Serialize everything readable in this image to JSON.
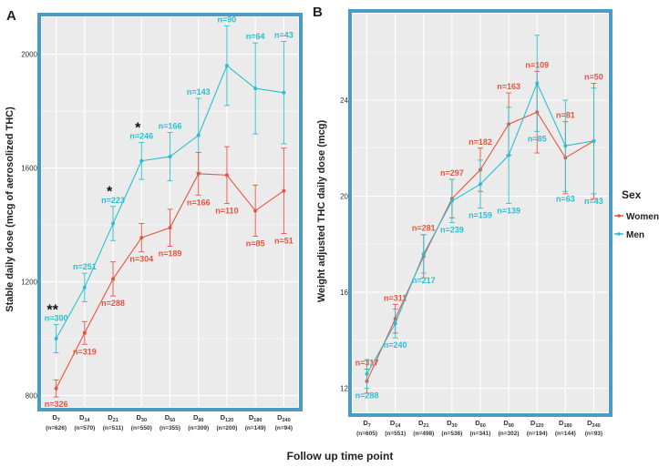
{
  "figure": {
    "shared_xlabel": "Follow up time point"
  },
  "colors": {
    "women": "#e8543f",
    "men": "#29bfd2",
    "frame": "#4a9cc4",
    "panel_bg": "#ebebeb",
    "grid": "#ffffff",
    "text": "#222222"
  },
  "chart_data": [
    {
      "panel": "A",
      "type": "line",
      "ylabel": "Stable daily dose (mcg of aerosolized THC)",
      "xlabel": "Follow up time point",
      "ylim": [
        760,
        2130
      ],
      "yticks": [
        800,
        1200,
        1600,
        2000
      ],
      "categories": [
        {
          "main": "D",
          "sub": "7",
          "n": "(n=626)"
        },
        {
          "main": "D",
          "sub": "14",
          "n": "(n=570)"
        },
        {
          "main": "D",
          "sub": "21",
          "n": "(n=511)"
        },
        {
          "main": "D",
          "sub": "30",
          "n": "(n=550)"
        },
        {
          "main": "D",
          "sub": "60",
          "n": "(n=355)"
        },
        {
          "main": "D",
          "sub": "90",
          "n": "(n=309)"
        },
        {
          "main": "D",
          "sub": "120",
          "n": "(n=200)"
        },
        {
          "main": "D",
          "sub": "180",
          "n": "(n=149)"
        },
        {
          "main": "D",
          "sub": "240",
          "n": "(n=94)"
        }
      ],
      "series": [
        {
          "name": "Men",
          "color": "#29bfd2",
          "values": [
            1000,
            1180,
            1405,
            1625,
            1640,
            1715,
            1960,
            1880,
            1865
          ],
          "err": [
            50,
            50,
            60,
            65,
            85,
            130,
            140,
            160,
            180
          ],
          "labels": [
            "n=300",
            "n=251",
            "n=223",
            "n=246",
            "n=166",
            "n=143",
            "n=90",
            "n=64",
            "n=43"
          ],
          "label_pos": [
            "above",
            "above",
            "above",
            "above",
            "above",
            "above",
            "above",
            "above",
            "above"
          ]
        },
        {
          "name": "Women",
          "color": "#e8543f",
          "values": [
            825,
            1020,
            1210,
            1355,
            1390,
            1580,
            1575,
            1450,
            1520
          ],
          "err": [
            30,
            40,
            60,
            50,
            65,
            75,
            100,
            90,
            150
          ],
          "labels": [
            "n=326",
            "n=319",
            "n=288",
            "n=304",
            "n=189",
            "n=166",
            "n=110",
            "n=85",
            "n=51"
          ],
          "label_pos": [
            "below",
            "below",
            "below",
            "below",
            "below",
            "below",
            "below",
            "below",
            "below"
          ]
        }
      ],
      "annotations": [
        {
          "text": "**",
          "category_index": 0,
          "value": 1060
        },
        {
          "text": "*",
          "category_index": 2,
          "value": 1475
        },
        {
          "text": "*",
          "category_index": 3,
          "value": 1700
        }
      ]
    },
    {
      "panel": "B",
      "type": "line",
      "ylabel": "Weight adjusted THC daily dose (mcg)",
      "xlabel": "Follow up time point",
      "ylim": [
        11,
        27.6
      ],
      "yticks": [
        12,
        16,
        20,
        24
      ],
      "categories": [
        {
          "main": "D",
          "sub": "7",
          "n": "(n=605)"
        },
        {
          "main": "D",
          "sub": "14",
          "n": "(n=551)"
        },
        {
          "main": "D",
          "sub": "21",
          "n": "(n=498)"
        },
        {
          "main": "D",
          "sub": "30",
          "n": "(n=536)"
        },
        {
          "main": "D",
          "sub": "60",
          "n": "(n=341)"
        },
        {
          "main": "D",
          "sub": "90",
          "n": "(n=302)"
        },
        {
          "main": "D",
          "sub": "120",
          "n": "(n=194)"
        },
        {
          "main": "D",
          "sub": "180",
          "n": "(n=144)"
        },
        {
          "main": "D",
          "sub": "240",
          "n": "(n=93)"
        }
      ],
      "series": [
        {
          "name": "Women",
          "color": "#e8543f",
          "values": [
            12.3,
            14.9,
            17.5,
            19.9,
            21.1,
            23.0,
            23.5,
            21.6,
            22.3
          ],
          "err": [
            0.5,
            0.6,
            0.9,
            0.8,
            0.9,
            1.3,
            1.7,
            1.5,
            2.4
          ],
          "labels": [
            "n=317",
            "n=311",
            "n=281",
            "n=297",
            "n=182",
            "n=163",
            "n=109",
            "n=81",
            "n=50"
          ],
          "label_pos": [
            "above",
            "above",
            "above",
            "above",
            "above",
            "above",
            "above",
            "above",
            "above"
          ]
        },
        {
          "name": "Men",
          "color": "#29bfd2",
          "values": [
            12.6,
            14.7,
            17.6,
            19.8,
            20.5,
            21.7,
            24.7,
            22.1,
            22.3
          ],
          "err": [
            0.6,
            0.6,
            0.8,
            0.9,
            1.0,
            2.0,
            2.0,
            1.9,
            2.2
          ],
          "labels": [
            "n=288",
            "n=240",
            "n=217",
            "n=239",
            "n=159",
            "n=139",
            "n=85",
            "n=63",
            "n=43"
          ],
          "label_pos": [
            "below",
            "below",
            "below",
            "below",
            "below",
            "below",
            "below",
            "below",
            "below"
          ]
        }
      ],
      "legend": {
        "title": "Sex",
        "placement": "right",
        "entries": [
          {
            "name": "Women",
            "color": "#e8543f"
          },
          {
            "name": "Men",
            "color": "#29bfd2"
          }
        ]
      }
    }
  ]
}
